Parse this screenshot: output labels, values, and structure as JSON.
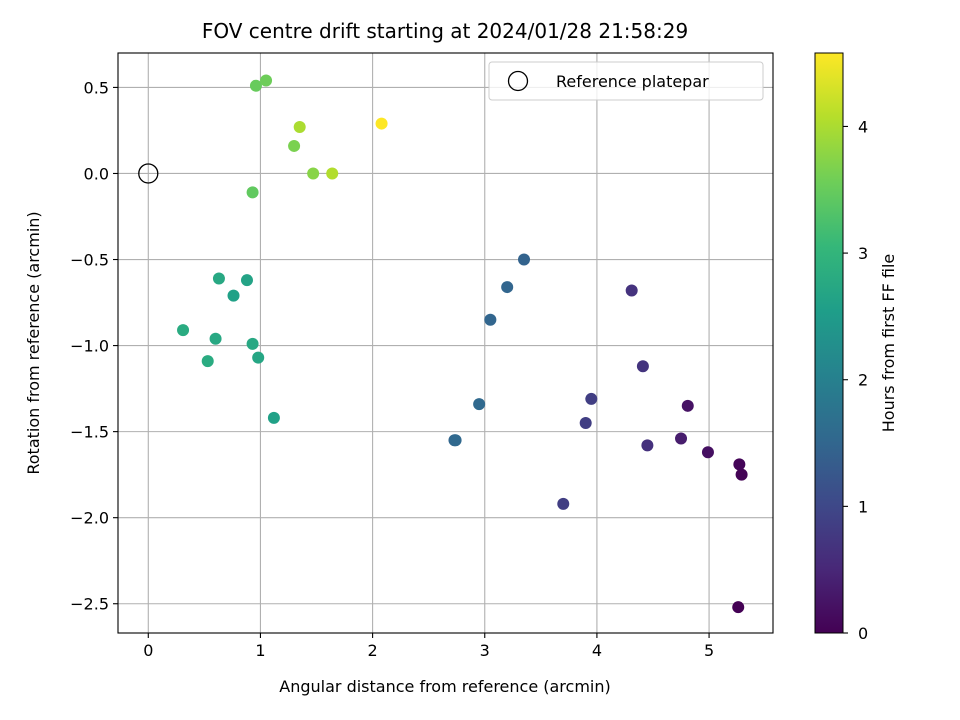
{
  "chart_data": {
    "type": "scatter",
    "title": "FOV centre drift starting at 2024/01/28 21:58:29",
    "xlabel": "Angular distance from reference (arcmin)",
    "ylabel": "Rotation from reference (arcmin)",
    "xlim": [
      -0.27,
      5.57
    ],
    "ylim": [
      -2.67,
      0.7
    ],
    "xticks": [
      0,
      1,
      2,
      3,
      4,
      5
    ],
    "yticks": [
      0.5,
      0.0,
      -0.5,
      -1.0,
      -1.5,
      -2.0,
      -2.5
    ],
    "xtick_labels": [
      "0",
      "1",
      "2",
      "3",
      "4",
      "5"
    ],
    "ytick_labels": [
      "0.5",
      "0.0",
      "−0.5",
      "−1.0",
      "−1.5",
      "−2.0",
      "−2.5"
    ],
    "grid": true,
    "legend": {
      "placement": "top-right",
      "entries": [
        "Reference platepar"
      ]
    },
    "reference_point": {
      "x": 0.0,
      "y": 0.0
    },
    "colorbar": {
      "label": "Hours from first FF file",
      "min": 0.0,
      "max": 4.58,
      "ticks": [
        0,
        1,
        2,
        3,
        4
      ],
      "tick_labels": [
        "0",
        "1",
        "2",
        "3",
        "4"
      ],
      "colormap": "viridis"
    },
    "colormap_stops": [
      "#440154",
      "#482878",
      "#3e4989",
      "#31688e",
      "#26828e",
      "#1f9e89",
      "#35b779",
      "#6ece58",
      "#b5de2b",
      "#fde725"
    ],
    "points": [
      {
        "x": 5.26,
        "y": -2.52,
        "c": 0.0
      },
      {
        "x": 5.29,
        "y": -1.75,
        "c": 0.02
      },
      {
        "x": 5.27,
        "y": -1.69,
        "c": 0.05
      },
      {
        "x": 4.99,
        "y": -1.62,
        "c": 0.18
      },
      {
        "x": 4.81,
        "y": -1.35,
        "c": 0.22
      },
      {
        "x": 4.75,
        "y": -1.54,
        "c": 0.36
      },
      {
        "x": 4.45,
        "y": -1.58,
        "c": 0.65
      },
      {
        "x": 4.41,
        "y": -1.12,
        "c": 0.7
      },
      {
        "x": 4.31,
        "y": -0.68,
        "c": 0.68
      },
      {
        "x": 3.95,
        "y": -1.31,
        "c": 0.85
      },
      {
        "x": 3.9,
        "y": -1.45,
        "c": 0.85
      },
      {
        "x": 3.7,
        "y": -1.92,
        "c": 0.85
      },
      {
        "x": 3.35,
        "y": -0.5,
        "c": 1.45
      },
      {
        "x": 3.2,
        "y": -0.66,
        "c": 1.5
      },
      {
        "x": 3.05,
        "y": -0.85,
        "c": 1.5
      },
      {
        "x": 2.95,
        "y": -1.34,
        "c": 1.55
      },
      {
        "x": 2.73,
        "y": -1.55,
        "c": 1.5
      },
      {
        "x": 2.74,
        "y": -1.55,
        "c": 1.55
      },
      {
        "x": 1.12,
        "y": -1.42,
        "c": 2.6
      },
      {
        "x": 0.98,
        "y": -1.07,
        "c": 2.7
      },
      {
        "x": 0.93,
        "y": -0.99,
        "c": 2.75
      },
      {
        "x": 0.88,
        "y": -0.62,
        "c": 2.65
      },
      {
        "x": 0.63,
        "y": -0.61,
        "c": 2.75
      },
      {
        "x": 0.76,
        "y": -0.71,
        "c": 2.6
      },
      {
        "x": 0.6,
        "y": -0.96,
        "c": 2.75
      },
      {
        "x": 0.53,
        "y": -1.09,
        "c": 2.8
      },
      {
        "x": 0.31,
        "y": -0.91,
        "c": 2.8
      },
      {
        "x": 0.93,
        "y": -0.11,
        "c": 3.45
      },
      {
        "x": 0.96,
        "y": 0.51,
        "c": 3.5
      },
      {
        "x": 1.05,
        "y": 0.54,
        "c": 3.55
      },
      {
        "x": 1.3,
        "y": 0.16,
        "c": 3.65
      },
      {
        "x": 1.47,
        "y": 0.0,
        "c": 3.75
      },
      {
        "x": 1.35,
        "y": 0.27,
        "c": 4.0
      },
      {
        "x": 1.64,
        "y": 0.0,
        "c": 4.05
      },
      {
        "x": 2.08,
        "y": 0.29,
        "c": 4.58
      }
    ]
  }
}
